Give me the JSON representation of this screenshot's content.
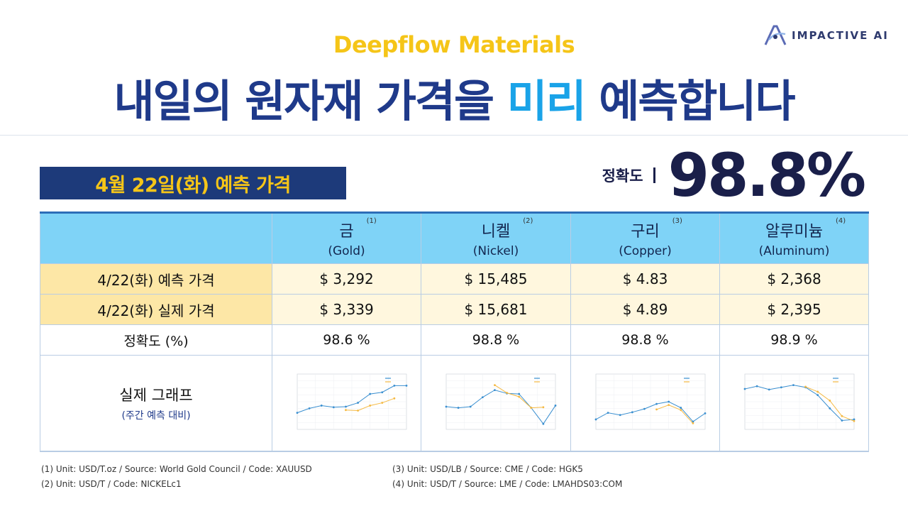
{
  "brand": "Deepflow Materials",
  "headline": {
    "before": "내일의 원자재 가격을 ",
    "accent": "미리",
    "after": " 예측합니다"
  },
  "logo": {
    "text": "IMPACTIVE AI",
    "icon": "impactive-logo-icon"
  },
  "date_label": "4월 22일(화)  예측 가격",
  "accuracy": {
    "label": "정확도",
    "value": "98.8%"
  },
  "table": {
    "columns": [
      {
        "name": "금",
        "sup": "(1)",
        "en": "(Gold)"
      },
      {
        "name": "니켈",
        "sup": "(2)",
        "en": "(Nickel)"
      },
      {
        "name": "구리",
        "sup": "(3)",
        "en": "(Copper)"
      },
      {
        "name": "알루미늄",
        "sup": "(4)",
        "en": "(Aluminum)"
      }
    ],
    "rows": {
      "predicted": {
        "label": "4/22(화) 예측 가격",
        "values": [
          "$ 3,292",
          "$ 15,485",
          "$ 4.83",
          "$ 2,368"
        ]
      },
      "actual": {
        "label": "4/22(화) 실제 가격",
        "values": [
          "$ 3,339",
          "$ 15,681",
          "$ 4.89",
          "$ 2,395"
        ]
      },
      "accuracy": {
        "label": "정확도 (%)",
        "values": [
          "98.6 %",
          "98.8 %",
          "98.8 %",
          "98.9 %"
        ]
      },
      "graph": {
        "label": "실제 그래프",
        "sublabel": "(주간 예측 대비)"
      }
    }
  },
  "chart_data": [
    {
      "type": "line",
      "title": "",
      "x": [
        1,
        2,
        3,
        4,
        5,
        6,
        7,
        8,
        9,
        10
      ],
      "series": [
        {
          "values": [
            3.0,
            3.8,
            4.3,
            4.0,
            4.1,
            4.8,
            6.4,
            6.7,
            7.9,
            7.9
          ]
        },
        {
          "values": [
            null,
            null,
            null,
            null,
            3.5,
            3.4,
            4.3,
            4.8,
            5.6,
            null
          ]
        }
      ]
    },
    {
      "type": "line",
      "title": "",
      "x": [
        1,
        2,
        3,
        4,
        5,
        6,
        7,
        8,
        9,
        10
      ],
      "series": [
        {
          "values": [
            4.1,
            3.9,
            4.1,
            5.8,
            7.1,
            6.5,
            6.4,
            3.9,
            1.0,
            4.3
          ]
        },
        {
          "values": [
            null,
            null,
            null,
            null,
            8.0,
            6.6,
            5.9,
            3.9,
            4.0,
            null
          ]
        }
      ]
    },
    {
      "type": "line",
      "title": "",
      "x": [
        1,
        2,
        3,
        4,
        5,
        6,
        7,
        8,
        9,
        10
      ],
      "series": [
        {
          "values": [
            1.8,
            3.0,
            2.6,
            3.1,
            3.7,
            4.6,
            5.0,
            3.9,
            1.4,
            2.9
          ]
        },
        {
          "values": [
            null,
            null,
            null,
            null,
            null,
            3.6,
            4.4,
            3.5,
            1.1,
            null
          ]
        }
      ]
    },
    {
      "type": "line",
      "title": "",
      "x": [
        1,
        2,
        3,
        4,
        5,
        6,
        7,
        8,
        9,
        10
      ],
      "series": [
        {
          "values": [
            7.3,
            7.8,
            7.2,
            7.6,
            8.0,
            7.6,
            6.2,
            3.8,
            1.6,
            1.8
          ]
        },
        {
          "values": [
            null,
            null,
            null,
            null,
            null,
            7.7,
            6.8,
            5.2,
            2.4,
            1.5
          ]
        }
      ]
    }
  ],
  "footnotes": {
    "n1": "(1)  Unit: USD/T.oz   /   Source: World Gold Council   /   Code: XAUUSD",
    "n2": "(2)  Unit: USD/T   /   Code: NICKELc1",
    "n3": "(3)  Unit: USD/LB   /   Source: CME   /   Code: HGK5",
    "n4": "(4)  Unit: USD/T   /   Source: LME   /   Code: LMAHDS03:COM"
  },
  "colors": {
    "actual": "#3a8fd0",
    "predicted": "#f5b942",
    "navy": "#1f3a8a",
    "accent": "#1aa3e8"
  }
}
